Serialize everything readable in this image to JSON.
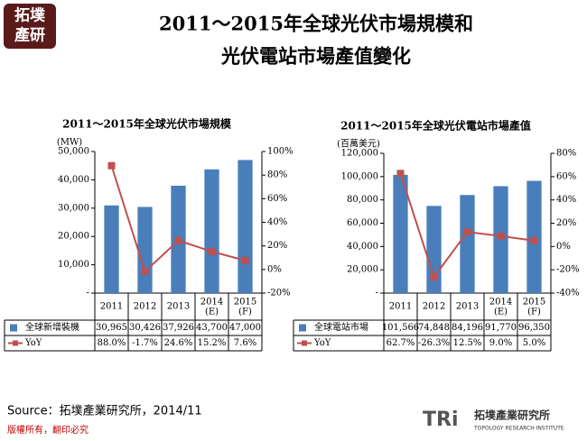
{
  "header": {
    "logo": [
      "拓墣",
      "產研"
    ],
    "title_lines": [
      "2011～2015年全球光伏市場規模和",
      "光伏電站市場產值變化"
    ]
  },
  "chart_data": [
    {
      "type": "bar",
      "title": "2011～2015年全球光伏市場規模",
      "y_label": "(MW)",
      "categories": [
        "2011",
        "2012",
        "2013",
        "2014 (E)",
        "2015 (F)"
      ],
      "series": [
        {
          "name": "全球新增裝機",
          "color": "#4a7ebb",
          "values": [
            30965,
            30426,
            37926,
            43700,
            47000
          ],
          "value_labels": [
            "30,965",
            "30,426",
            "37,926",
            "43,700",
            "47,000"
          ]
        },
        {
          "name": "YoY",
          "color": "#c0504d",
          "axis": "y2",
          "values": [
            88.0,
            -1.7,
            24.6,
            15.2,
            7.6
          ],
          "value_labels": [
            "88.0%",
            "-1.7%",
            "24.6%",
            "15.2%",
            "7.6%"
          ]
        }
      ],
      "ylim": [
        0,
        50000
      ],
      "yticks": [
        {
          "value": 0,
          "label": "-"
        },
        {
          "value": 10000,
          "label": "10,000"
        },
        {
          "value": 20000,
          "label": "20,000"
        },
        {
          "value": 30000,
          "label": "30,000"
        },
        {
          "value": 40000,
          "label": "40,000"
        },
        {
          "value": 50000,
          "label": "50,000"
        }
      ],
      "y2lim": [
        -20,
        100
      ],
      "y2ticks": [
        {
          "value": -20,
          "label": "-20%"
        },
        {
          "value": 0,
          "label": "0%"
        },
        {
          "value": 20,
          "label": "20%"
        },
        {
          "value": 40,
          "label": "40%"
        },
        {
          "value": 60,
          "label": "60%"
        },
        {
          "value": 80,
          "label": "80%"
        },
        {
          "value": 100,
          "label": "100%"
        }
      ]
    },
    {
      "type": "bar",
      "title": "2011～2015年全球光伏電站市場產值",
      "y_label": "(百萬美元)",
      "categories": [
        "2011",
        "2012",
        "2013",
        "2014 (E)",
        "2015 (F)"
      ],
      "series": [
        {
          "name": "全球電站市場",
          "color": "#4a7ebb",
          "values": [
            101566,
            74848,
            84196,
            91770,
            96350
          ],
          "value_labels": [
            "101,566",
            "74,848",
            "84,196",
            "91,770",
            "96,350"
          ]
        },
        {
          "name": "YoY",
          "color": "#c0504d",
          "axis": "y2",
          "values": [
            62.7,
            -26.3,
            12.5,
            9.0,
            5.0
          ],
          "value_labels": [
            "62.7%",
            "-26.3%",
            "12.5%",
            "9.0%",
            "5.0%"
          ]
        }
      ],
      "ylim": [
        0,
        120000
      ],
      "yticks": [
        {
          "value": 0,
          "label": "-"
        },
        {
          "value": 20000,
          "label": "20,000"
        },
        {
          "value": 40000,
          "label": "40,000"
        },
        {
          "value": 60000,
          "label": "60,000"
        },
        {
          "value": 80000,
          "label": "80,000"
        },
        {
          "value": 100000,
          "label": "100,000"
        },
        {
          "value": 120000,
          "label": "120,000"
        }
      ],
      "y2lim": [
        -40,
        80
      ],
      "y2ticks": [
        {
          "value": -40,
          "label": "-40%"
        },
        {
          "value": -20,
          "label": "-20%"
        },
        {
          "value": 0,
          "label": "0%"
        },
        {
          "value": 20,
          "label": "20%"
        },
        {
          "value": 40,
          "label": "40%"
        },
        {
          "value": 60,
          "label": "60%"
        },
        {
          "value": 80,
          "label": "80%"
        }
      ]
    }
  ],
  "footer": {
    "source": "Source：拓墣產業研究所，2014/11",
    "copyright": "版權所有，翻印必究",
    "brand": "TRi",
    "brand_name": "拓墣產業研究所",
    "brand_sub": "TOPOLOGY RESEARCH INSTITUTE"
  }
}
